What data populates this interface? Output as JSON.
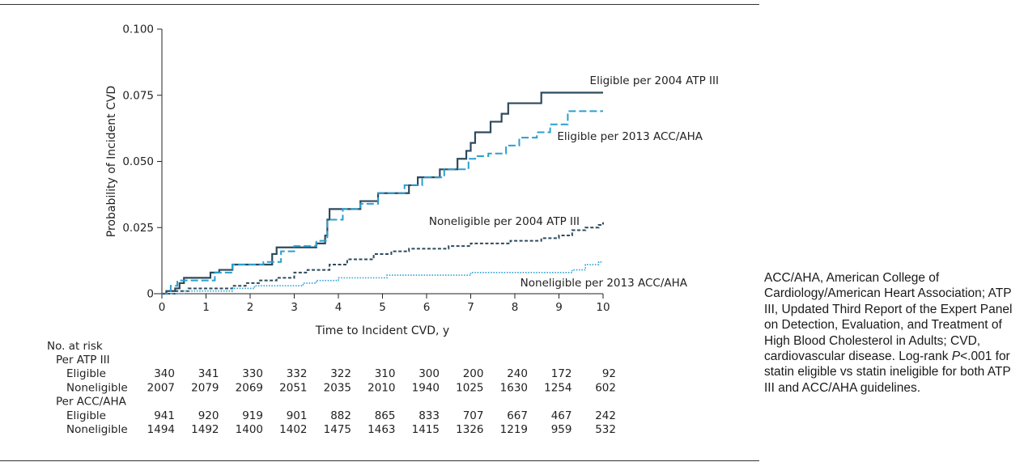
{
  "chart_data": {
    "type": "line",
    "ylabel": "Probability of Incident CVD",
    "xlabel": "Time to Incident CVD, y",
    "xlim": [
      0,
      10
    ],
    "ylim": [
      0,
      0.1
    ],
    "x_ticks": [
      "0",
      "1",
      "2",
      "3",
      "4",
      "5",
      "6",
      "7",
      "8",
      "9",
      "10"
    ],
    "y_ticks": [
      {
        "value": 0,
        "label": "0"
      },
      {
        "value": 0.025,
        "label": "0.025"
      },
      {
        "value": 0.05,
        "label": "0.050"
      },
      {
        "value": 0.075,
        "label": "0.075"
      },
      {
        "value": 0.1,
        "label": "0.100"
      }
    ],
    "grid": false,
    "series": [
      {
        "name": "Eligible per 2004 ATP III",
        "color": "#2e4a5c",
        "style": "solid",
        "steps": [
          [
            0,
            0
          ],
          [
            0.1,
            0.001
          ],
          [
            0.3,
            0.002
          ],
          [
            0.4,
            0.004
          ],
          [
            0.5,
            0.006
          ],
          [
            1.1,
            0.008
          ],
          [
            1.3,
            0.009
          ],
          [
            1.6,
            0.011
          ],
          [
            2.5,
            0.015
          ],
          [
            2.6,
            0.0175
          ],
          [
            3.5,
            0.019
          ],
          [
            3.7,
            0.022
          ],
          [
            3.75,
            0.028
          ],
          [
            3.8,
            0.032
          ],
          [
            4.5,
            0.035
          ],
          [
            4.9,
            0.038
          ],
          [
            5.6,
            0.041
          ],
          [
            5.8,
            0.044
          ],
          [
            6.3,
            0.047
          ],
          [
            6.7,
            0.051
          ],
          [
            6.9,
            0.054
          ],
          [
            7.0,
            0.057
          ],
          [
            7.1,
            0.061
          ],
          [
            7.45,
            0.065
          ],
          [
            7.7,
            0.068
          ],
          [
            7.85,
            0.072
          ],
          [
            8.6,
            0.076
          ],
          [
            10,
            0.076
          ]
        ],
        "end_label": "Eligible per 2004 ATP III"
      },
      {
        "name": "Eligible per 2013 ACC/AHA",
        "color": "#2a9fd0",
        "style": "long-dash",
        "steps": [
          [
            0,
            0
          ],
          [
            0.2,
            0.003
          ],
          [
            0.35,
            0.005
          ],
          [
            1.2,
            0.008
          ],
          [
            1.6,
            0.011
          ],
          [
            2.3,
            0.012
          ],
          [
            2.7,
            0.016
          ],
          [
            3.0,
            0.018
          ],
          [
            3.5,
            0.02
          ],
          [
            3.75,
            0.028
          ],
          [
            4.1,
            0.032
          ],
          [
            4.5,
            0.034
          ],
          [
            4.9,
            0.038
          ],
          [
            5.5,
            0.041
          ],
          [
            5.9,
            0.044
          ],
          [
            6.4,
            0.047
          ],
          [
            6.95,
            0.051
          ],
          [
            7.1,
            0.052
          ],
          [
            7.4,
            0.053
          ],
          [
            7.8,
            0.056
          ],
          [
            8.1,
            0.059
          ],
          [
            8.5,
            0.061
          ],
          [
            8.8,
            0.064
          ],
          [
            9.2,
            0.069
          ],
          [
            10,
            0.069
          ]
        ],
        "end_label": "Eligible per 2013 ACC/AHA"
      },
      {
        "name": "Noneligible per 2004 ATP III",
        "color": "#2e4a5c",
        "style": "short-dash",
        "steps": [
          [
            0,
            0
          ],
          [
            0.3,
            0.001
          ],
          [
            0.6,
            0.002
          ],
          [
            1.6,
            0.003
          ],
          [
            1.9,
            0.004
          ],
          [
            2.2,
            0.005
          ],
          [
            2.6,
            0.006
          ],
          [
            3.0,
            0.008
          ],
          [
            3.3,
            0.009
          ],
          [
            3.8,
            0.011
          ],
          [
            4.2,
            0.013
          ],
          [
            4.8,
            0.015
          ],
          [
            5.2,
            0.016
          ],
          [
            5.6,
            0.017
          ],
          [
            6.5,
            0.018
          ],
          [
            7.0,
            0.019
          ],
          [
            7.9,
            0.02
          ],
          [
            8.6,
            0.021
          ],
          [
            9.0,
            0.022
          ],
          [
            9.3,
            0.024
          ],
          [
            9.6,
            0.025
          ],
          [
            9.9,
            0.026
          ],
          [
            10,
            0.027
          ]
        ],
        "end_label": "Noneligible per 2004 ATP III"
      },
      {
        "name": "Noneligible per 2013 ACC/AHA",
        "color": "#2a9fd0",
        "style": "dotted",
        "steps": [
          [
            0,
            0
          ],
          [
            0.5,
            0.001
          ],
          [
            1.6,
            0.002
          ],
          [
            2.1,
            0.003
          ],
          [
            3.2,
            0.004
          ],
          [
            3.5,
            0.005
          ],
          [
            4.0,
            0.006
          ],
          [
            5.1,
            0.007
          ],
          [
            7.0,
            0.008
          ],
          [
            9.3,
            0.009
          ],
          [
            9.6,
            0.011
          ],
          [
            9.9,
            0.012
          ],
          [
            10,
            0.012
          ]
        ],
        "end_label": "Noneligible per 2013 ACC/AHA"
      }
    ],
    "risk_table": {
      "title": "No. at risk",
      "groups": [
        {
          "label": "Per ATP III",
          "rows": [
            {
              "label": "Eligible",
              "values": [
                "340",
                "341",
                "330",
                "332",
                "322",
                "310",
                "300",
                "200",
                "240",
                "172",
                "92"
              ]
            },
            {
              "label": "Noneligible",
              "values": [
                "2007",
                "2079",
                "2069",
                "2051",
                "2035",
                "2010",
                "1940",
                "1025",
                "1630",
                "1254",
                "602"
              ]
            }
          ]
        },
        {
          "label": "Per ACC/AHA",
          "rows": [
            {
              "label": "Eligible",
              "values": [
                "941",
                "920",
                "919",
                "901",
                "882",
                "865",
                "833",
                "707",
                "667",
                "467",
                "242"
              ]
            },
            {
              "label": "Noneligible",
              "values": [
                "1494",
                "1492",
                "1400",
                "1402",
                "1475",
                "1463",
                "1415",
                "1326",
                "1219",
                "959",
                "532"
              ]
            }
          ]
        }
      ]
    }
  },
  "caption": {
    "text_before": "ACC/AHA, American College of Cardiology/American Heart Association; ATP III, Updated Third Report of the Expert Panel on Detection, Evaluation, and Treatment of High Blood Cholesterol in Adults; CVD, cardiovascular disease. Log-rank ",
    "p_symbol": "P",
    "text_after": "<.001 for statin eligible vs statin ineligible for both ATP III and ACC/AHA guidelines."
  }
}
